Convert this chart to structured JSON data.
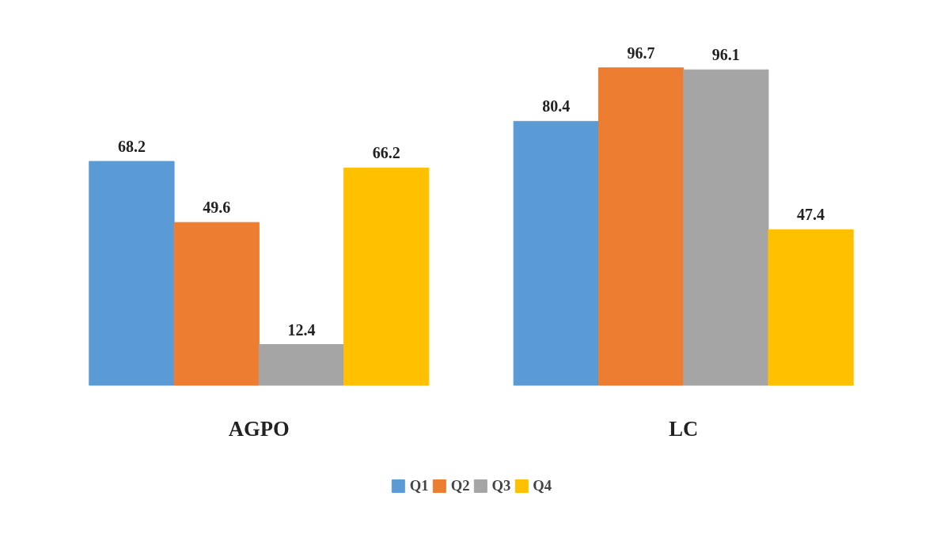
{
  "chart_data": {
    "type": "bar",
    "categories": [
      "AGPO",
      "LC"
    ],
    "series": [
      {
        "name": "Q1",
        "color": "#5b9bd5",
        "values": [
          68.2,
          80.4
        ]
      },
      {
        "name": "Q2",
        "color": "#ed7d31",
        "values": [
          49.6,
          96.7
        ]
      },
      {
        "name": "Q3",
        "color": "#a5a5a5",
        "values": [
          12.4,
          96.1
        ]
      },
      {
        "name": "Q4",
        "color": "#ffc000",
        "values": [
          66.2,
          47.4
        ]
      }
    ],
    "data_labels": true,
    "grid": false,
    "legend": "bottom"
  }
}
